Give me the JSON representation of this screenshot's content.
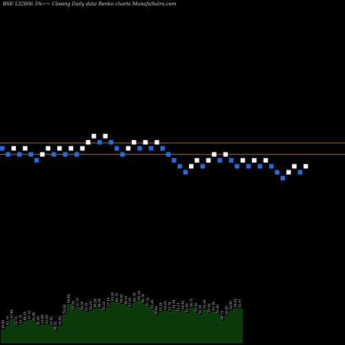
{
  "chart_data": {
    "type": "renko",
    "title": "BSE 532806  5%~~  Closing Daily data  Renko  charts MunafaSutra.com",
    "colors": {
      "background": "#000000",
      "up_brick": "#ffffff",
      "down_brick": "#1f6fe6",
      "reference_line": "#b8742a",
      "volume_fill": "#0a3a0a",
      "volume_stroke": "#0f5a0f",
      "volume_label": "#c9c9c9"
    },
    "reference_levels": [
      117.4,
      107.0
    ],
    "bricks": [
      {
        "dir": "down",
        "value": 112.5
      },
      {
        "dir": "down",
        "value": 107.0
      },
      {
        "dir": "up",
        "value": 112.5
      },
      {
        "dir": "down",
        "value": 107.0
      },
      {
        "dir": "up",
        "value": 112.5
      },
      {
        "dir": "down",
        "value": 107.0
      },
      {
        "dir": "down",
        "value": 101.6
      },
      {
        "dir": "up",
        "value": 107.0
      },
      {
        "dir": "up",
        "value": 112.5
      },
      {
        "dir": "down",
        "value": 107.0
      },
      {
        "dir": "up",
        "value": 112.5
      },
      {
        "dir": "down",
        "value": 107.0
      },
      {
        "dir": "up",
        "value": 112.5
      },
      {
        "dir": "down",
        "value": 107.0
      },
      {
        "dir": "up",
        "value": 112.5
      },
      {
        "dir": "up",
        "value": 118.0
      },
      {
        "dir": "up",
        "value": 123.6
      },
      {
        "dir": "down",
        "value": 118.0
      },
      {
        "dir": "up",
        "value": 123.6
      },
      {
        "dir": "down",
        "value": 118.0
      },
      {
        "dir": "down",
        "value": 112.5
      },
      {
        "dir": "down",
        "value": 107.0
      },
      {
        "dir": "up",
        "value": 112.5
      },
      {
        "dir": "up",
        "value": 118.0
      },
      {
        "dir": "down",
        "value": 112.5
      },
      {
        "dir": "up",
        "value": 118.0
      },
      {
        "dir": "down",
        "value": 112.5
      },
      {
        "dir": "up",
        "value": 118.0
      },
      {
        "dir": "down",
        "value": 112.5
      },
      {
        "dir": "down",
        "value": 107.0
      },
      {
        "dir": "down",
        "value": 101.6
      },
      {
        "dir": "down",
        "value": 96.2
      },
      {
        "dir": "down",
        "value": 90.8
      },
      {
        "dir": "up",
        "value": 96.2
      },
      {
        "dir": "up",
        "value": 101.6
      },
      {
        "dir": "down",
        "value": 96.2
      },
      {
        "dir": "up",
        "value": 101.6
      },
      {
        "dir": "up",
        "value": 107.0
      },
      {
        "dir": "down",
        "value": 101.6
      },
      {
        "dir": "up",
        "value": 107.0
      },
      {
        "dir": "down",
        "value": 101.6
      },
      {
        "dir": "down",
        "value": 96.2
      },
      {
        "dir": "up",
        "value": 101.6
      },
      {
        "dir": "down",
        "value": 96.2
      },
      {
        "dir": "up",
        "value": 101.6
      },
      {
        "dir": "down",
        "value": 96.2
      },
      {
        "dir": "up",
        "value": 101.6
      },
      {
        "dir": "down",
        "value": 96.2
      },
      {
        "dir": "down",
        "value": 90.8
      },
      {
        "dir": "down",
        "value": 85.5
      },
      {
        "dir": "up",
        "value": 90.8
      },
      {
        "dir": "up",
        "value": 96.2
      },
      {
        "dir": "down",
        "value": 90.8
      },
      {
        "dir": "up",
        "value": 96.2
      }
    ],
    "volume_labels": [
      "39.85",
      "42.74",
      "47.89",
      "42.74",
      "43.75",
      "46.29",
      "47.31",
      "45.86",
      "42.85",
      "43.89",
      "43.85",
      "42.50",
      "38.55",
      "42.85",
      "51.84",
      "59.64",
      "54.55",
      "57.37",
      "54.30",
      "53.32",
      "54.25",
      "56.18",
      "56.34",
      "54.21",
      "57.14",
      "61.41",
      "60.70",
      "59.80",
      "58.34",
      "57.05",
      "60.78",
      "62.34",
      "59.78",
      "57.31",
      "55.40",
      "50.82",
      "53.26",
      "54.40",
      "53.76",
      "55.44",
      "53.23",
      "54.82",
      "52.55",
      "56.71",
      "52.99",
      "51.34",
      "55.49",
      "52.54",
      "53.78",
      "51.80",
      "46.73",
      "50.85",
      "54.60",
      "56.41",
      "55.97"
    ]
  }
}
